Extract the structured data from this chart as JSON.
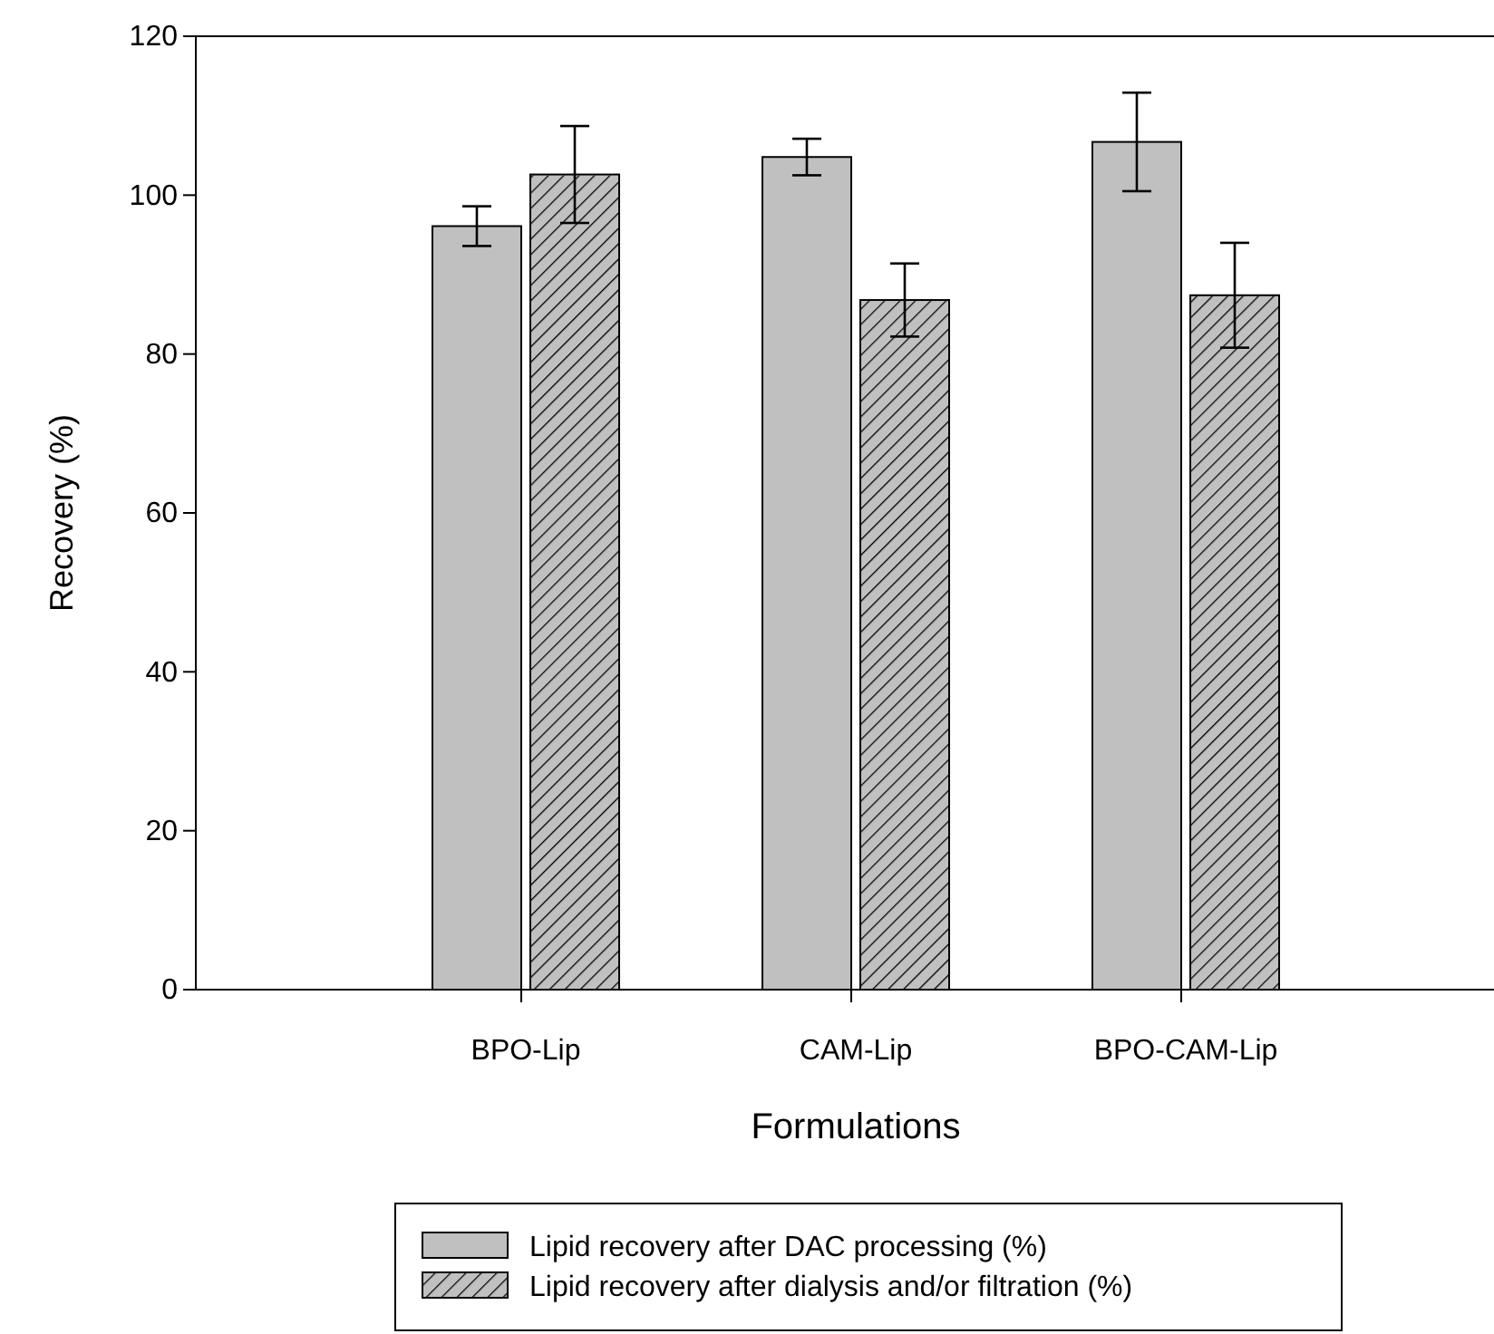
{
  "chart_data": {
    "type": "bar",
    "xlabel": "Formulations",
    "ylabel": "Recovery (%)",
    "categories": [
      "BPO-Lip",
      "CAM-Lip",
      "BPO-CAM-Lip"
    ],
    "series": [
      {
        "name": "Lipid recovery after DAC processing (%)",
        "color": "#c0c0c0",
        "values": [
          96.1,
          104.8,
          106.7
        ],
        "errors": [
          2.5,
          2.3,
          6.2
        ]
      },
      {
        "name": "Lipid recovery after dialysis and/or filtration (%)",
        "color": "#c0c0c0",
        "values": [
          102.6,
          86.8,
          87.4
        ],
        "errors": [
          6.1,
          4.6,
          6.6
        ]
      }
    ],
    "ylim": [
      0,
      120
    ],
    "yticks": [
      0,
      20,
      40,
      60,
      80,
      100,
      120
    ],
    "grid": false,
    "legend": "bottom"
  }
}
